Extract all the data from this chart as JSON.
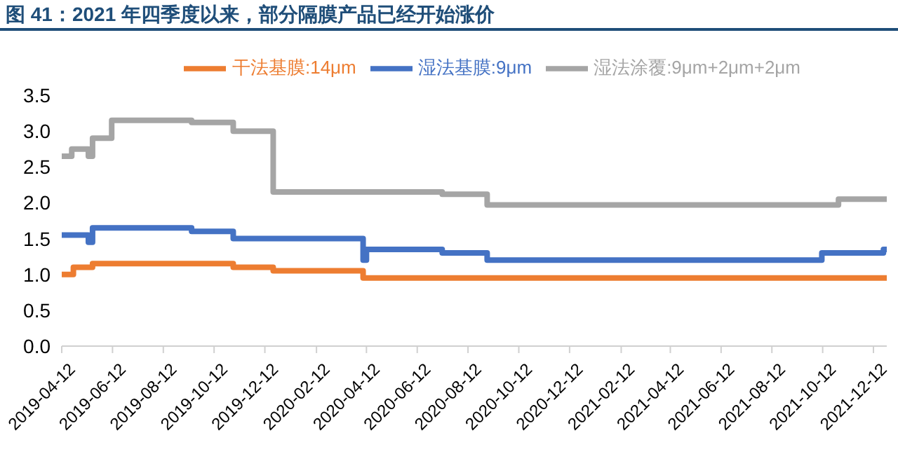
{
  "chart_data": {
    "type": "step",
    "title": "图 41：2021 年四季度以来，部分隔膜产品已经开始涨价",
    "xlim": [
      "2019-04-12",
      "2021-12-28"
    ],
    "xticks": [
      "2019-04-12",
      "2019-06-12",
      "2019-08-12",
      "2019-10-12",
      "2019-12-12",
      "2020-02-12",
      "2020-04-12",
      "2020-06-12",
      "2020-08-12",
      "2020-10-12",
      "2020-12-12",
      "2021-02-12",
      "2021-04-12",
      "2021-06-12",
      "2021-08-12",
      "2021-10-12",
      "2021-12-12"
    ],
    "ylim": [
      0,
      3.5
    ],
    "yticks": [
      {
        "value": 0,
        "label": "0.0"
      },
      {
        "value": 0.5,
        "label": "0.5"
      },
      {
        "value": 1,
        "label": "1.0"
      },
      {
        "value": 1.5,
        "label": "1.5"
      },
      {
        "value": 2,
        "label": "2.0"
      },
      {
        "value": 2.5,
        "label": "2.5"
      },
      {
        "value": 3,
        "label": "3.0"
      },
      {
        "value": 3.5,
        "label": "3.5"
      }
    ],
    "grid": false,
    "legend": "top",
    "marker": "none",
    "line_style": "solid",
    "series": [
      {
        "name": "湿法基膜:9μm",
        "color": "#4472c4",
        "x": [
          "2019-04-12",
          "2019-05-14",
          "2019-05-19",
          "2019-09-15",
          "2019-11-04",
          "2020-04-08",
          "2020-04-12",
          "2020-07-12",
          "2020-09-04",
          "2021-10-11",
          "2021-12-24",
          "2021-12-28"
        ],
        "values": [
          1.55,
          1.45,
          1.65,
          1.6,
          1.5,
          1.2,
          1.35,
          1.3,
          1.2,
          1.3,
          1.35,
          1.35
        ]
      },
      {
        "name": "干法基膜:14μm",
        "color": "#ed7d31",
        "x": [
          "2019-04-12",
          "2019-04-26",
          "2019-05-19",
          "2019-11-04",
          "2019-12-22",
          "2020-04-08",
          "2021-12-28"
        ],
        "values": [
          1.0,
          1.1,
          1.15,
          1.1,
          1.05,
          0.95,
          0.95
        ]
      },
      {
        "name": "湿法涂覆:9μm+2μm+2μm",
        "color": "#a5a5a5",
        "x": [
          "2019-04-12",
          "2019-04-24",
          "2019-05-14",
          "2019-05-19",
          "2019-06-11",
          "2019-09-15",
          "2019-11-04",
          "2019-12-22",
          "2020-07-12",
          "2020-09-04",
          "2021-10-31",
          "2021-12-28"
        ],
        "values": [
          2.65,
          2.75,
          2.65,
          2.9,
          3.15,
          3.12,
          3.0,
          2.15,
          2.12,
          1.97,
          2.05,
          2.05
        ]
      }
    ]
  }
}
